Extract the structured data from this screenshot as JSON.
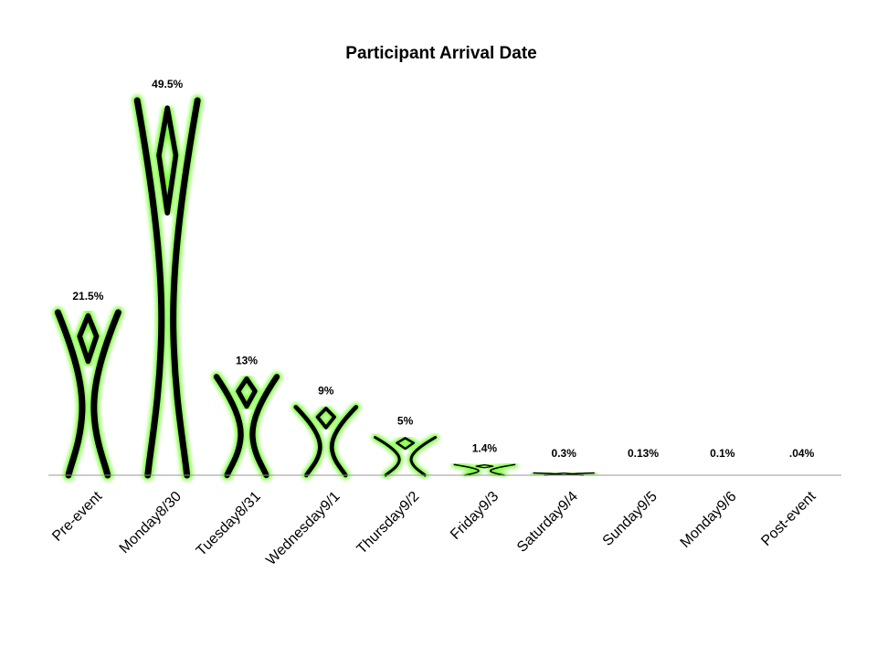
{
  "chart_data": {
    "type": "bar",
    "title": "Participant Arrival Date",
    "xlabel": "",
    "ylabel": "",
    "categories": [
      "Pre-event",
      "Monday8/30",
      "Tuesday8/31",
      "Wednesday9/1",
      "Thursday9/2",
      "Friday9/3",
      "Saturday9/4",
      "Sunday9/5",
      "Monday9/6",
      "Post-event"
    ],
    "values": [
      21.5,
      49.5,
      13,
      9,
      5,
      1.4,
      0.3,
      0.13,
      0.1,
      0.04
    ],
    "data_labels": [
      "21.5%",
      "49.5%",
      "13%",
      "9%",
      "5%",
      "1.4%",
      "0.3%",
      "0.13%",
      "0.1%",
      ".04%"
    ],
    "ylim": [
      0,
      50
    ],
    "grid": false,
    "legend": "none",
    "bar_shape": "stylized-person",
    "colors": {
      "outline": "#000000",
      "glow": "#7dff3c",
      "axis": "#999999"
    }
  }
}
